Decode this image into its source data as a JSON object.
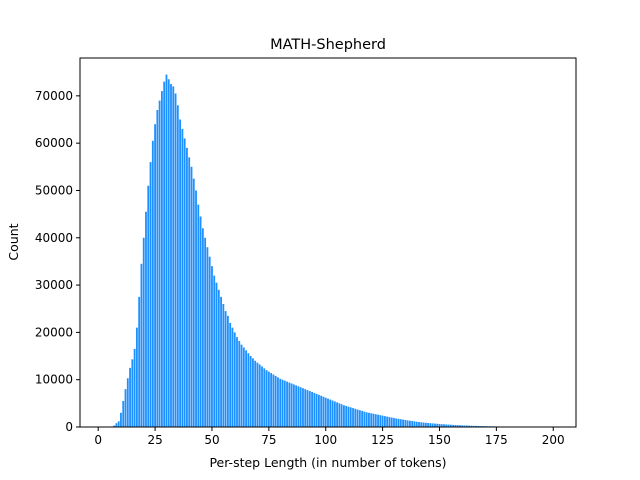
{
  "chart_data": {
    "type": "bar",
    "title": "MATH-Shepherd",
    "xlabel": "Per-step Length (in number of tokens)",
    "ylabel": "Count",
    "xlim": [
      -8,
      210
    ],
    "ylim": [
      0,
      78000
    ],
    "xticks": [
      0,
      25,
      50,
      75,
      100,
      125,
      150,
      175,
      200
    ],
    "yticks": [
      0,
      10000,
      20000,
      30000,
      40000,
      50000,
      60000,
      70000
    ],
    "bar_color": "#1e90ff",
    "x_start": 1,
    "values": [
      0,
      0,
      0,
      0,
      0,
      100,
      300,
      800,
      1200,
      3000,
      5500,
      8000,
      10300,
      12500,
      14300,
      16500,
      21000,
      27500,
      34500,
      40000,
      45500,
      51000,
      56000,
      60500,
      64000,
      67000,
      69000,
      71000,
      73000,
      74500,
      73500,
      72500,
      72000,
      70500,
      68000,
      65000,
      63000,
      61000,
      59000,
      57000,
      55000,
      52500,
      50000,
      47000,
      44500,
      42000,
      40000,
      38000,
      36000,
      34000,
      32000,
      30500,
      29000,
      27500,
      26000,
      24500,
      23500,
      22000,
      21000,
      20000,
      19000,
      18200,
      17400,
      16800,
      16200,
      15600,
      15000,
      14500,
      14000,
      13600,
      13200,
      12800,
      12400,
      12000,
      11700,
      11400,
      11100,
      10800,
      10500,
      10200,
      10000,
      9800,
      9600,
      9400,
      9200,
      9000,
      8800,
      8600,
      8400,
      8200,
      8000,
      7800,
      7600,
      7400,
      7200,
      7000,
      6800,
      6600,
      6400,
      6200,
      6000,
      5800,
      5600,
      5400,
      5200,
      5000,
      4800,
      4600,
      4450,
      4300,
      4150,
      4000,
      3850,
      3700,
      3550,
      3400,
      3250,
      3100,
      3000,
      2900,
      2800,
      2700,
      2600,
      2500,
      2400,
      2300,
      2200,
      2100,
      2000,
      1900,
      1800,
      1720,
      1640,
      1560,
      1480,
      1400,
      1330,
      1260,
      1190,
      1120,
      1050,
      1000,
      950,
      900,
      850,
      800,
      760,
      720,
      680,
      640,
      600,
      570,
      540,
      510,
      480,
      450,
      425,
      400,
      375,
      350,
      330,
      310,
      290,
      270,
      250,
      235,
      220,
      205,
      190,
      175,
      165,
      155,
      145,
      135,
      125,
      115,
      105,
      95,
      90,
      85,
      80,
      75,
      70,
      65,
      60,
      55,
      50,
      45,
      40,
      35,
      30,
      28,
      26,
      24,
      22,
      20,
      18,
      16,
      14,
      12
    ]
  }
}
